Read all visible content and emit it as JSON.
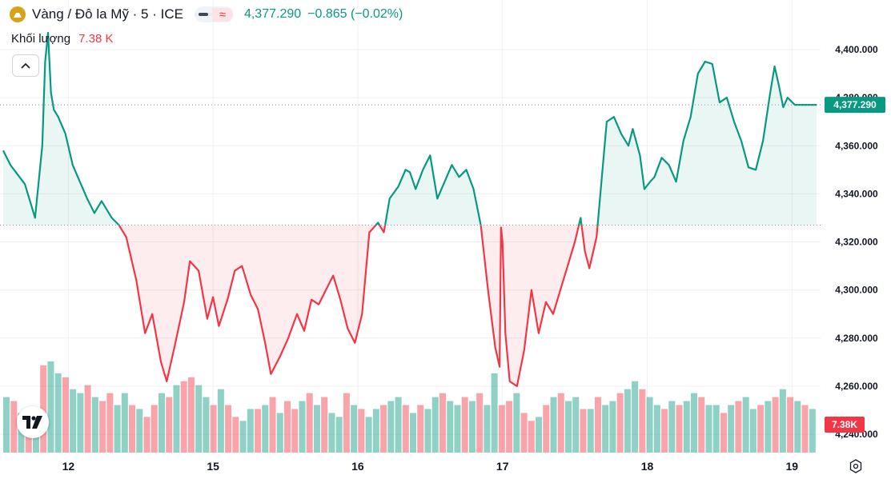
{
  "header": {
    "symbol_title": "Vàng / Đô la Mỹ · 5 · ICE",
    "ind_symbol": "≈",
    "price": "4,377.290",
    "change": "−0.865 (−0.02%)"
  },
  "volume": {
    "label": "Khối lượng",
    "value": "7.38 K",
    "badge": "7.38K"
  },
  "colors": {
    "up": "#089981",
    "down": "#f23645",
    "grid": "#eef0f4",
    "text": "#131722"
  },
  "icons": {
    "logo": "tradingview-logo-icon",
    "collapse": "chevron-up-icon",
    "settings": "settings-gear-icon"
  },
  "chart_data": {
    "type": "area",
    "baseline": 4327,
    "last_price_label": "4,377.290",
    "ylim": [
      4235,
      4413
    ],
    "y_ticks": [
      4240,
      4260,
      4280,
      4300,
      4320,
      4340,
      4360,
      4380,
      4400
    ],
    "y_tick_labels": [
      "4,240.000",
      "4,260.000",
      "4,280.000",
      "4,300.000",
      "4,320.000",
      "4,340.000",
      "4,360.000",
      "4,380.000",
      "4,400.000"
    ],
    "x_tick_labels": [
      "12",
      "15",
      "16",
      "17",
      "18",
      "19"
    ],
    "x_tick_positions": [
      0.4,
      1.4,
      2.4,
      3.4,
      4.4,
      5.4
    ],
    "x_range": [
      -0.05,
      5.57
    ],
    "series": [
      {
        "x": [
          -0.05,
          0.0,
          0.05,
          0.1,
          0.17,
          0.22,
          0.24,
          0.26,
          0.28,
          0.3,
          0.33,
          0.38,
          0.43,
          0.48,
          0.53,
          0.58,
          0.63,
          0.7,
          0.75,
          0.8,
          0.87,
          0.93,
          0.98,
          1.04,
          1.08,
          1.14,
          1.2,
          1.24,
          1.3,
          1.36,
          1.4,
          1.44,
          1.5,
          1.55,
          1.6,
          1.66,
          1.71,
          1.76,
          1.8,
          1.86,
          1.92,
          1.98,
          2.03,
          2.08,
          2.13,
          2.18,
          2.23,
          2.28,
          2.33,
          2.38,
          2.43,
          2.48,
          2.54,
          2.58,
          2.62,
          2.68,
          2.73,
          2.76,
          2.8,
          2.85,
          2.9,
          2.95,
          3.0,
          3.05,
          3.1,
          3.15,
          3.2,
          3.25,
          3.3,
          3.35,
          3.38,
          3.39,
          3.4,
          3.42,
          3.45,
          3.5,
          3.55,
          3.6,
          3.65,
          3.7,
          3.75,
          3.8,
          3.85,
          3.9,
          3.94,
          3.97,
          4.0,
          4.05,
          4.12,
          4.17,
          4.22,
          4.27,
          4.3,
          4.35,
          4.38,
          4.42,
          4.45,
          4.5,
          4.55,
          4.6,
          4.65,
          4.7,
          4.75,
          4.8,
          4.85,
          4.9,
          4.95,
          5.0,
          5.05,
          5.1,
          5.15,
          5.2,
          5.25,
          5.28,
          5.31,
          5.34,
          5.37,
          5.42,
          5.46,
          5.5,
          5.55,
          5.57
        ],
        "y": [
          4358,
          4352,
          4348,
          4344,
          4330,
          4360,
          4395,
          4407,
          4382,
          4375,
          4372,
          4365,
          4352,
          4345,
          4338,
          4332,
          4337,
          4330,
          4327,
          4322,
          4304,
          4282,
          4290,
          4270,
          4262,
          4278,
          4295,
          4312,
          4308,
          4288,
          4297,
          4285,
          4296,
          4308,
          4310,
          4298,
          4292,
          4278,
          4265,
          4272,
          4280,
          4290,
          4283,
          4296,
          4294,
          4300,
          4306,
          4296,
          4284,
          4278,
          4290,
          4324,
          4328,
          4324,
          4338,
          4343,
          4350,
          4349,
          4342,
          4350,
          4356,
          4338,
          4345,
          4352,
          4347,
          4350,
          4342,
          4327,
          4300,
          4276,
          4268,
          4326,
          4320,
          4282,
          4262,
          4260,
          4275,
          4300,
          4282,
          4295,
          4290,
          4300,
          4310,
          4320,
          4330,
          4316,
          4309,
          4322,
          4370,
          4372,
          4365,
          4360,
          4367,
          4356,
          4342,
          4345,
          4347,
          4355,
          4352,
          4345,
          4362,
          4372,
          4390,
          4395,
          4394,
          4378,
          4380,
          4370,
          4362,
          4351,
          4350,
          4362,
          4382,
          4393,
          4385,
          4376,
          4380,
          4377,
          4377,
          4377,
          4377,
          4377
        ]
      }
    ],
    "volume": {
      "bars": [
        14,
        13,
        10,
        10,
        9,
        22,
        23,
        20,
        19,
        16,
        15,
        17,
        14,
        13,
        15,
        12,
        15,
        12,
        11,
        9,
        12,
        15,
        14,
        17,
        18,
        19,
        17,
        14,
        12,
        16,
        12,
        9,
        8,
        11,
        11,
        12,
        14,
        10,
        13,
        11,
        13,
        15,
        12,
        14,
        10,
        9,
        15,
        12,
        11,
        9,
        11,
        12,
        13,
        14,
        12,
        10,
        12,
        11,
        14,
        15,
        13,
        12,
        14,
        13,
        15,
        12,
        20,
        12,
        13,
        15,
        10,
        8,
        9,
        12,
        14,
        15,
        13,
        14,
        11,
        11,
        14,
        12,
        13,
        15,
        16,
        18,
        16,
        14,
        12,
        11,
        13,
        12,
        13,
        15,
        14,
        12,
        12,
        10,
        12,
        13,
        14,
        11,
        12,
        13,
        14,
        16,
        14,
        13,
        12,
        11
      ],
      "colors": [
        "up",
        "down",
        "up",
        "down",
        "up",
        "down",
        "up",
        "up",
        "down",
        "up",
        "up",
        "down",
        "up",
        "down",
        "down",
        "up",
        "up",
        "down",
        "up",
        "down",
        "down",
        "up",
        "down",
        "up",
        "down",
        "down",
        "up",
        "up",
        "down",
        "up",
        "down",
        "down",
        "up",
        "up",
        "down",
        "up",
        "down",
        "up",
        "down",
        "down",
        "up",
        "down",
        "up",
        "down",
        "up",
        "up",
        "down",
        "up",
        "down",
        "up",
        "up",
        "down",
        "up",
        "up",
        "down",
        "up",
        "down",
        "up",
        "up",
        "down",
        "up",
        "up",
        "down",
        "up",
        "down",
        "up",
        "up",
        "down",
        "down",
        "up",
        "down",
        "down",
        "up",
        "down",
        "up",
        "down",
        "up",
        "up",
        "down",
        "up",
        "down",
        "up",
        "up",
        "down",
        "up",
        "up",
        "down",
        "up",
        "up",
        "down",
        "up",
        "down",
        "up",
        "up",
        "down",
        "up",
        "up",
        "down",
        "up",
        "down",
        "up",
        "up",
        "down",
        "up",
        "down",
        "up",
        "down",
        "up",
        "down",
        "up"
      ]
    }
  }
}
